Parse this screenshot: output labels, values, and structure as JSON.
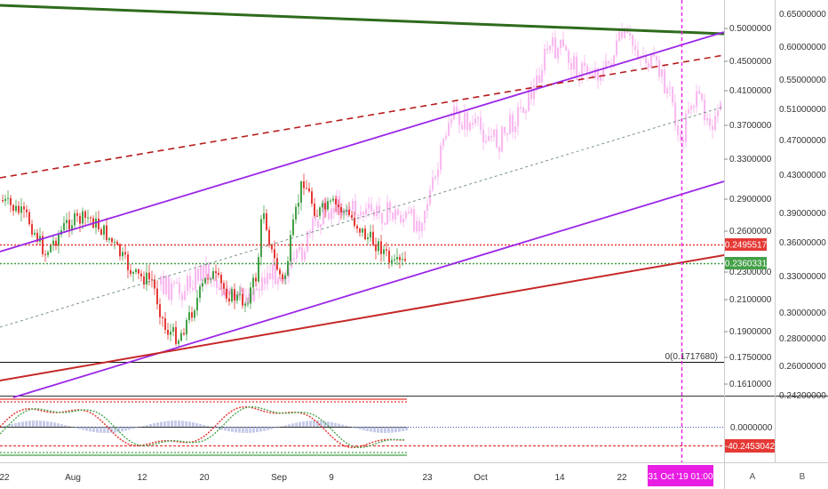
{
  "colors": {
    "bullish": "#43a047",
    "bearish": "#e53935",
    "overlay_symbol": "#f8bbf0",
    "channel": "#9c27e8",
    "trend_green": "#2e6b1d",
    "trend_red": "#c62828",
    "marker": "#e91ee3"
  },
  "chart_data": [
    {
      "type": "candlestick",
      "title": "",
      "x_axis_labels": [
        "22",
        "Aug",
        "12",
        "20",
        "Sep",
        "9",
        "23",
        "Oct",
        "14",
        "22"
      ],
      "y_axis_labels": [
        "0.5000000",
        "0.4500000",
        "0.4100000",
        "0.3700000",
        "0.3300000",
        "0.2900000",
        "0.2600000",
        "0.2300000",
        "0.2100000",
        "0.1900000",
        "0.1750000",
        "0.1610000"
      ],
      "secondary_y_axis_labels": [
        "0.65000000",
        "0.60000000",
        "0.55000000",
        "0.51000000",
        "0.47000000",
        "0.43000000",
        "0.39000000",
        "0.36000000",
        "0.33000000",
        "0.30000000",
        "0.28000000",
        "0.26000000",
        "0.24200000"
      ],
      "price_tags": [
        {
          "label": "0.2495517",
          "color": "#e53935"
        },
        {
          "label": "0.2360331",
          "color": "#43a047"
        }
      ],
      "annotation": "0(0.1717680)",
      "marker_label": "31 Oct '19   01:00",
      "grid": false
    },
    {
      "type": "line",
      "title": "",
      "y_axis_labels": [
        "0.0000000",
        "-40.2453042"
      ],
      "grid": false
    }
  ],
  "bottom_buttons": [
    "A",
    "B"
  ]
}
